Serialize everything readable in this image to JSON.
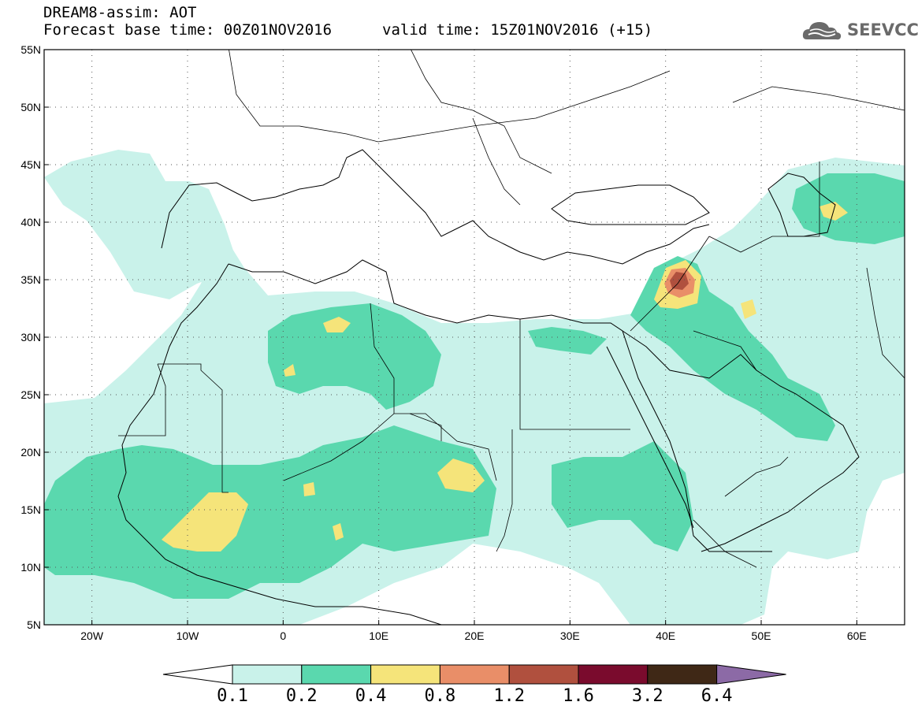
{
  "header": {
    "title": "DREAM8-assim: AOT",
    "base_time": "Forecast base time: 00Z01NOV2016",
    "valid_time": "valid time: 15Z01NOV2016 (+15)"
  },
  "logo": {
    "text": "SEEVCCC",
    "icon": "cloud-icon"
  },
  "map": {
    "lon_range": [
      -25,
      65
    ],
    "lat_range": [
      5,
      55
    ],
    "lat_ticks": [
      "55N",
      "50N",
      "45N",
      "40N",
      "35N",
      "30N",
      "25N",
      "20N",
      "15N",
      "10N",
      "5N"
    ],
    "lon_ticks": [
      "20W",
      "10W",
      "0",
      "10E",
      "20E",
      "30E",
      "40E",
      "50E",
      "60E"
    ],
    "grid": "dotted"
  },
  "colorbar": {
    "labels": [
      "0.1",
      "0.2",
      "0.4",
      "0.8",
      "1.2",
      "1.6",
      "3.2",
      "6.4"
    ],
    "colors": [
      "#ffffff",
      "#c9f2ea",
      "#5ad8ae",
      "#f5e47a",
      "#e98e68",
      "#b0503e",
      "#7a0b2d",
      "#3f2816",
      "#8c6aa6"
    ]
  }
}
